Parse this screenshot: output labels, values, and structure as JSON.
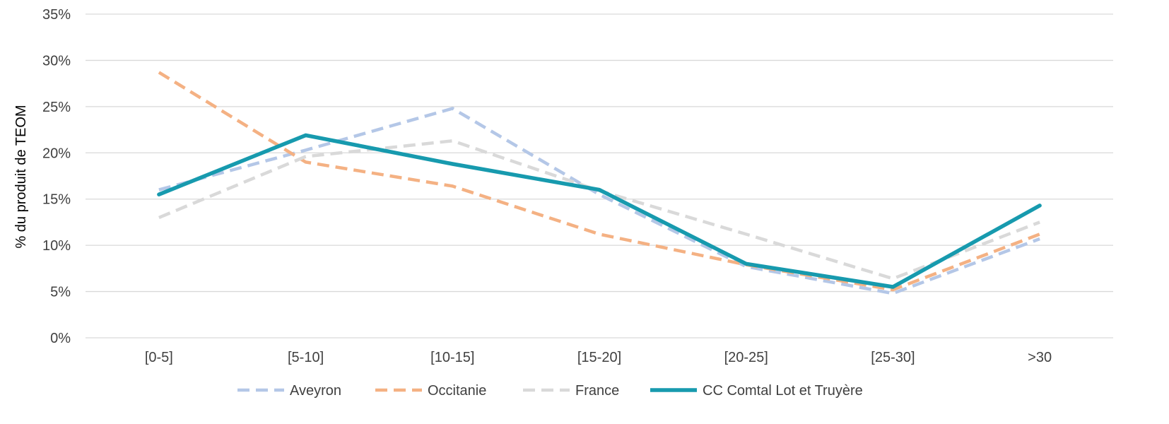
{
  "chart_data": {
    "type": "line",
    "title": "",
    "xlabel": "",
    "ylabel": "% du produit de TEOM",
    "categories": [
      "[0-5]",
      "[5-10]",
      "[10-15]",
      "[15-20]",
      "[20-25]",
      "[25-30]",
      ">30"
    ],
    "ylim": [
      0,
      35
    ],
    "yticks": [
      "0%",
      "5%",
      "10%",
      "15%",
      "20%",
      "25%",
      "30%",
      "35%"
    ],
    "grid": true,
    "legend_position": "bottom",
    "series": [
      {
        "name": "Aveyron",
        "color": "#b4c7e7",
        "dashed": true,
        "values": [
          16.0,
          20.3,
          24.8,
          15.5,
          7.7,
          4.8,
          10.7
        ]
      },
      {
        "name": "Occitanie",
        "color": "#f4b183",
        "dashed": true,
        "values": [
          28.7,
          19.0,
          16.4,
          11.2,
          7.9,
          5.2,
          11.2
        ]
      },
      {
        "name": "France",
        "color": "#d9d9d9",
        "dashed": true,
        "values": [
          13.0,
          19.6,
          21.3,
          15.9,
          11.2,
          6.4,
          12.5
        ]
      },
      {
        "name": "CC Comtal Lot et Truyère",
        "color": "#179aae",
        "dashed": false,
        "values": [
          15.5,
          21.9,
          18.8,
          16.0,
          8.0,
          5.5,
          14.3
        ]
      }
    ]
  }
}
